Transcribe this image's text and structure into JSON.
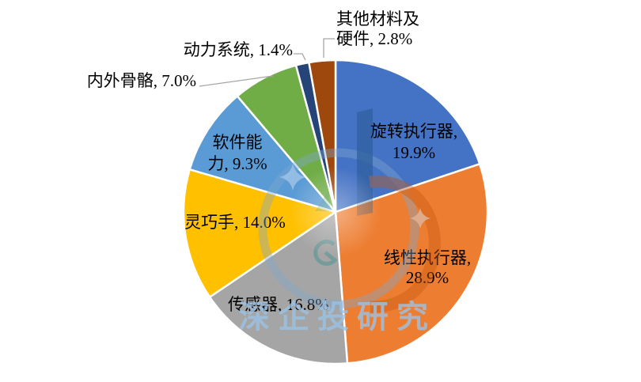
{
  "chart_data": {
    "type": "pie",
    "title": "",
    "unit": "%",
    "direction": "clockwise",
    "start_angle_deg": 0,
    "background": "#FFFFFF",
    "label_text_color": "#000000",
    "leader_line_color": "#A6A6A6",
    "segments": [
      {
        "id": "rotary-actuator",
        "label": "旋转执行器",
        "value": 19.9,
        "color": "#4472C4",
        "label_lines": [
          "旋转执行器,",
          "19.9%"
        ],
        "label_placement": "inside"
      },
      {
        "id": "linear-actuator",
        "label": "线性执行器",
        "value": 28.9,
        "color": "#ED7D31",
        "label_lines": [
          "线性执行器,",
          "28.9%"
        ],
        "label_placement": "inside"
      },
      {
        "id": "sensor",
        "label": "传感器",
        "value": 16.8,
        "color": "#A5A5A5",
        "label_lines": [
          "传感器, 16.8%"
        ],
        "label_placement": "inside"
      },
      {
        "id": "dexterous-hand",
        "label": "灵巧手",
        "value": 14.0,
        "color": "#FFC000",
        "label_lines": [
          "灵巧手, 14.0%"
        ],
        "label_placement": "inside"
      },
      {
        "id": "software-capability",
        "label": "软件能力",
        "value": 9.3,
        "color": "#5B9BD5",
        "label_lines": [
          "软件能",
          "力, 9.3%"
        ],
        "label_placement": "inside"
      },
      {
        "id": "endo-exo-skeleton",
        "label": "内外骨骼",
        "value": 7.0,
        "color": "#70AD47",
        "label_lines": [
          "内外骨骼, 7.0%"
        ],
        "label_placement": "outside"
      },
      {
        "id": "power-system",
        "label": "动力系统",
        "value": 1.4,
        "color": "#264478",
        "label_lines": [
          "动力系统, 1.4%"
        ],
        "label_placement": "outside"
      },
      {
        "id": "other-materials-hardware",
        "label": "其他材料及硬件",
        "value": 2.8,
        "color": "#9E480E",
        "label_lines": [
          "其他材料及",
          "硬件, 2.8%"
        ],
        "label_placement": "outside"
      }
    ]
  },
  "watermark": {
    "text": "深企投研究",
    "color": "#9CC2E5"
  }
}
